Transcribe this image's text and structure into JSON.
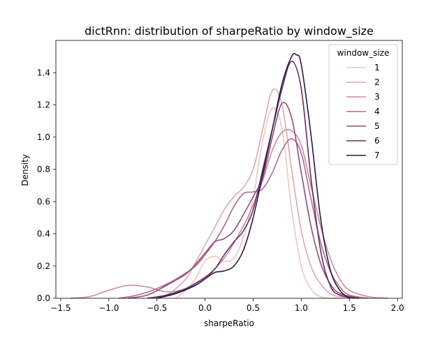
{
  "chart_data": {
    "type": "line",
    "title": "dictRnn: distribution of sharpeRatio by window_size",
    "xlabel": "sharpeRatio",
    "ylabel": "Density",
    "xlim": [
      -1.55,
      2.05
    ],
    "ylim": [
      0,
      1.6
    ],
    "xticks": [
      -1.5,
      -1.0,
      -0.5,
      0.0,
      0.5,
      1.0,
      1.5,
      2.0
    ],
    "xtick_labels": [
      "−1.5",
      "−1.0",
      "−0.5",
      "0.0",
      "0.5",
      "1.0",
      "1.5",
      "2.0"
    ],
    "yticks": [
      0.0,
      0.2,
      0.4,
      0.6,
      0.8,
      1.0,
      1.2,
      1.4
    ],
    "ytick_labels": [
      "0.0",
      "0.2",
      "0.4",
      "0.6",
      "0.8",
      "1.0",
      "1.2",
      "1.4"
    ],
    "grid": false,
    "legend": {
      "title": "window_size",
      "placement": "top-right"
    },
    "series": [
      {
        "name": "1",
        "color": "#ebc7c3",
        "x": [
          -0.3,
          -0.2,
          -0.1,
          0.0,
          0.1,
          0.2,
          0.3,
          0.4,
          0.5,
          0.6,
          0.7,
          0.8,
          0.9,
          1.0,
          1.1,
          1.2,
          1.3,
          1.4
        ],
        "y": [
          0.0,
          0.05,
          0.12,
          0.23,
          0.26,
          0.23,
          0.25,
          0.38,
          0.62,
          0.98,
          1.18,
          1.05,
          0.55,
          0.2,
          0.06,
          0.01,
          0.0,
          0.0
        ]
      },
      {
        "name": "2",
        "color": "#dba9b0",
        "x": [
          -0.6,
          -0.4,
          -0.2,
          -0.1,
          0.0,
          0.1,
          0.2,
          0.3,
          0.4,
          0.5,
          0.6,
          0.7,
          0.8,
          0.9,
          1.0,
          1.1,
          1.2,
          1.3,
          1.4,
          1.6
        ],
        "y": [
          0.0,
          0.02,
          0.12,
          0.22,
          0.33,
          0.44,
          0.55,
          0.63,
          0.69,
          0.8,
          1.05,
          1.29,
          1.2,
          0.8,
          0.42,
          0.2,
          0.09,
          0.03,
          0.01,
          0.0
        ]
      },
      {
        "name": "3",
        "color": "#c98b9f",
        "x": [
          -1.4,
          -1.2,
          -1.0,
          -0.8,
          -0.6,
          -0.4,
          -0.2,
          0.0,
          0.2,
          0.4,
          0.5,
          0.6,
          0.7,
          0.8,
          0.9,
          1.0,
          1.1,
          1.2,
          1.3,
          1.4,
          1.5,
          1.7,
          1.9
        ],
        "y": [
          0.0,
          0.01,
          0.05,
          0.08,
          0.07,
          0.04,
          0.06,
          0.13,
          0.25,
          0.45,
          0.58,
          0.73,
          0.92,
          1.03,
          1.04,
          0.95,
          0.7,
          0.45,
          0.25,
          0.12,
          0.05,
          0.01,
          0.0
        ]
      },
      {
        "name": "4",
        "color": "#ae6b8c",
        "x": [
          -0.9,
          -0.7,
          -0.5,
          -0.3,
          -0.1,
          0.0,
          0.1,
          0.2,
          0.3,
          0.4,
          0.5,
          0.6,
          0.7,
          0.8,
          0.9,
          1.0,
          1.1,
          1.2,
          1.3,
          1.4,
          1.5,
          1.7
        ],
        "y": [
          0.0,
          0.02,
          0.06,
          0.12,
          0.2,
          0.27,
          0.35,
          0.45,
          0.57,
          0.65,
          0.66,
          0.68,
          0.78,
          0.92,
          0.99,
          0.9,
          0.62,
          0.35,
          0.17,
          0.07,
          0.02,
          0.0
        ]
      },
      {
        "name": "5",
        "color": "#8e4e7d",
        "x": [
          -0.8,
          -0.6,
          -0.4,
          -0.2,
          -0.1,
          0.0,
          0.1,
          0.2,
          0.3,
          0.4,
          0.5,
          0.6,
          0.7,
          0.8,
          0.9,
          1.0,
          1.1,
          1.2,
          1.3,
          1.4,
          1.6
        ],
        "y": [
          0.0,
          0.02,
          0.08,
          0.15,
          0.21,
          0.28,
          0.35,
          0.37,
          0.42,
          0.52,
          0.63,
          0.75,
          1.0,
          1.21,
          1.12,
          0.78,
          0.45,
          0.22,
          0.09,
          0.03,
          0.0
        ]
      },
      {
        "name": "6",
        "color": "#5e2e5e",
        "x": [
          -0.6,
          -0.4,
          -0.2,
          0.0,
          0.1,
          0.2,
          0.3,
          0.4,
          0.5,
          0.6,
          0.7,
          0.8,
          0.9,
          1.0,
          1.1,
          1.2,
          1.3,
          1.4,
          1.6
        ],
        "y": [
          0.0,
          0.02,
          0.06,
          0.13,
          0.18,
          0.27,
          0.35,
          0.42,
          0.55,
          0.8,
          1.05,
          1.3,
          1.47,
          1.3,
          0.75,
          0.3,
          0.08,
          0.02,
          0.0
        ]
      },
      {
        "name": "7",
        "color": "#2d1a40",
        "x": [
          -0.5,
          -0.3,
          -0.1,
          0.0,
          0.1,
          0.2,
          0.3,
          0.4,
          0.5,
          0.6,
          0.7,
          0.8,
          0.9,
          0.95,
          1.0,
          1.1,
          1.2,
          1.3,
          1.4,
          1.5
        ],
        "y": [
          0.0,
          0.03,
          0.08,
          0.12,
          0.16,
          0.17,
          0.2,
          0.3,
          0.5,
          0.77,
          1.05,
          1.33,
          1.5,
          1.51,
          1.45,
          1.02,
          0.5,
          0.18,
          0.05,
          0.0
        ]
      }
    ]
  }
}
